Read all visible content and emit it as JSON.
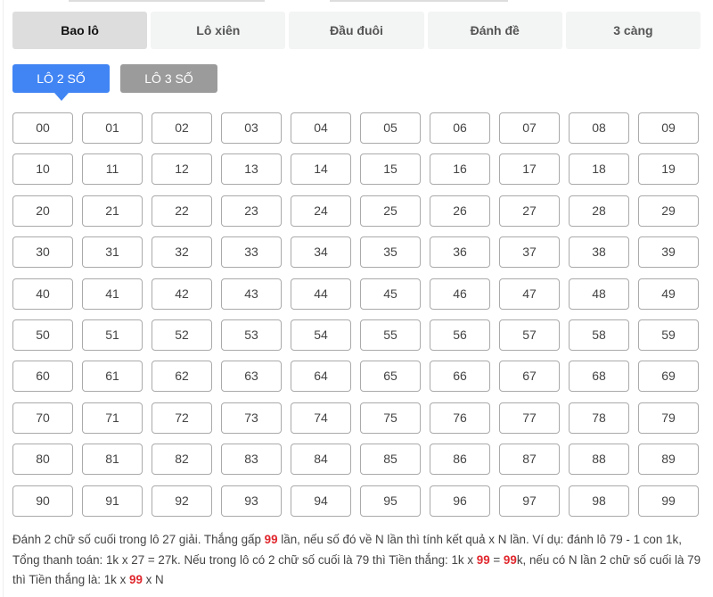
{
  "tabs": [
    {
      "label": "Bao lô",
      "active": true
    },
    {
      "label": "Lô xiên"
    },
    {
      "label": "Đầu đuôi"
    },
    {
      "label": "Đánh đề"
    },
    {
      "label": "3 càng"
    }
  ],
  "subtabs": [
    {
      "label": "LÔ 2 SỐ",
      "active": true
    },
    {
      "label": "LÔ 3 SỐ"
    }
  ],
  "numbers": [
    "00",
    "01",
    "02",
    "03",
    "04",
    "05",
    "06",
    "07",
    "08",
    "09",
    "10",
    "11",
    "12",
    "13",
    "14",
    "15",
    "16",
    "17",
    "18",
    "19",
    "20",
    "21",
    "22",
    "23",
    "24",
    "25",
    "26",
    "27",
    "28",
    "29",
    "30",
    "31",
    "32",
    "33",
    "34",
    "35",
    "36",
    "37",
    "38",
    "39",
    "40",
    "41",
    "42",
    "43",
    "44",
    "45",
    "46",
    "47",
    "48",
    "49",
    "50",
    "51",
    "52",
    "53",
    "54",
    "55",
    "56",
    "57",
    "58",
    "59",
    "60",
    "61",
    "62",
    "63",
    "64",
    "65",
    "66",
    "67",
    "68",
    "69",
    "70",
    "71",
    "72",
    "73",
    "74",
    "75",
    "76",
    "77",
    "78",
    "79",
    "80",
    "81",
    "82",
    "83",
    "84",
    "85",
    "86",
    "87",
    "88",
    "89",
    "90",
    "91",
    "92",
    "93",
    "94",
    "95",
    "96",
    "97",
    "98",
    "99"
  ],
  "description": [
    {
      "text": "Đánh 2 chữ số cuối trong lô 27 giải. Thắng gấp "
    },
    {
      "text": "99",
      "highlight": true
    },
    {
      "text": " lần, nếu số đó về N lần thì tính kết quả x N lần. Ví dụ: đánh lô 79 - 1 con 1k, Tổng thanh toán: 1k x 27 = 27k. Nếu trong lô có 2 chữ số cuối là 79 thì Tiền thắng: 1k x "
    },
    {
      "text": "99",
      "highlight": true
    },
    {
      "text": " = "
    },
    {
      "text": "99",
      "highlight": true
    },
    {
      "text": "k, nếu có N lần 2 chữ số cuối là 79 thì Tiền thắng là: 1k x "
    },
    {
      "text": "99",
      "highlight": true
    },
    {
      "text": " x N"
    }
  ],
  "colors": {
    "active_subtab": "#4185f4",
    "inactive_subtab": "#9b9b9b",
    "highlight": "#e0282e"
  }
}
